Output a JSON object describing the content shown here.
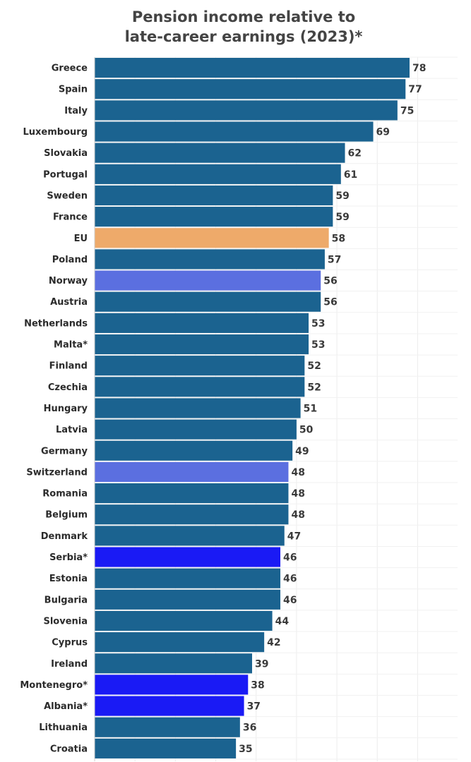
{
  "title_line1": "Pension income relative to",
  "title_line2": "late-career earnings (2023)*",
  "chart_data": {
    "type": "bar",
    "orientation": "horizontal",
    "title": "Pension income relative to late-career earnings (2023)*",
    "xlim": [
      0,
      80
    ],
    "grid": true,
    "categories": [
      "Greece",
      "Spain",
      "Italy",
      "Luxembourg",
      "Slovakia",
      "Portugal",
      "Sweden",
      "France",
      "EU",
      "Poland",
      "Norway",
      "Austria",
      "Netherlands",
      "Malta*",
      "Finland",
      "Czechia",
      "Hungary",
      "Latvia",
      "Germany",
      "Switzerland",
      "Romania",
      "Belgium",
      "Denmark",
      "Serbia*",
      "Estonia",
      "Bulgaria",
      "Slovenia",
      "Cyprus",
      "Ireland",
      "Montenegro*",
      "Albania*",
      "Lithuania",
      "Croatia"
    ],
    "values": [
      78,
      77,
      75,
      69,
      62,
      61,
      59,
      59,
      58,
      57,
      56,
      56,
      53,
      53,
      52,
      52,
      51,
      50,
      49,
      48,
      48,
      48,
      47,
      46,
      46,
      46,
      44,
      42,
      39,
      38,
      37,
      36,
      35
    ],
    "colors": {
      "default": "#1b6390",
      "EU": "#eeaa6a",
      "Norway": "#5b6fe0",
      "Switzerland": "#5b6fe0",
      "Serbia*": "#1a1af5",
      "Montenegro*": "#1a1af5",
      "Albania*": "#1a1af5"
    }
  }
}
